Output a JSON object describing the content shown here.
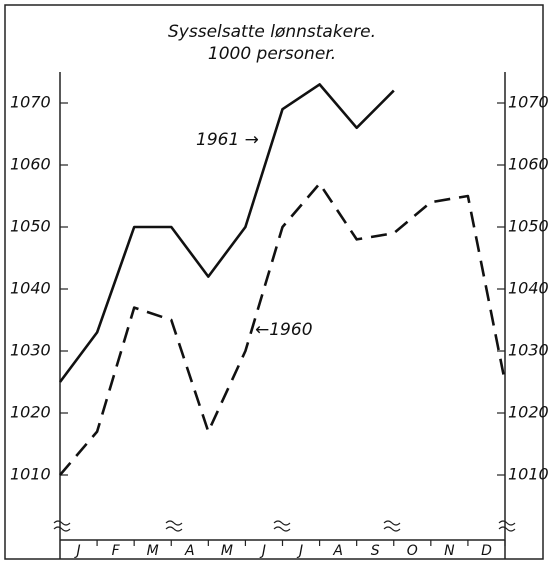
{
  "chart_data": {
    "type": "line",
    "title": "Sysselsatte lønnstakere.",
    "subtitle": "1000 personer.",
    "categories": [
      null,
      "J",
      "F",
      "M",
      "A",
      "M",
      "J",
      "J",
      "A",
      "S",
      "O",
      "N",
      "D"
    ],
    "series": [
      {
        "name": "1961",
        "color": "#111111",
        "dash": false,
        "values": [
          1025,
          1033,
          1050,
          1050,
          1042,
          1050,
          1069,
          1073,
          1066,
          1072,
          null,
          null,
          null
        ]
      },
      {
        "name": "1960",
        "color": "#111111",
        "dash": true,
        "values": [
          1010,
          1017,
          1037,
          1035,
          1017,
          1030,
          1050,
          1057,
          1048,
          1049,
          1054,
          1055,
          1025
        ]
      }
    ],
    "annotations": [
      "1961 →",
      "←1960"
    ],
    "ylim": [
      1000,
      1075
    ],
    "yticks": [
      1010,
      1020,
      1030,
      1040,
      1050,
      1060,
      1070
    ]
  }
}
